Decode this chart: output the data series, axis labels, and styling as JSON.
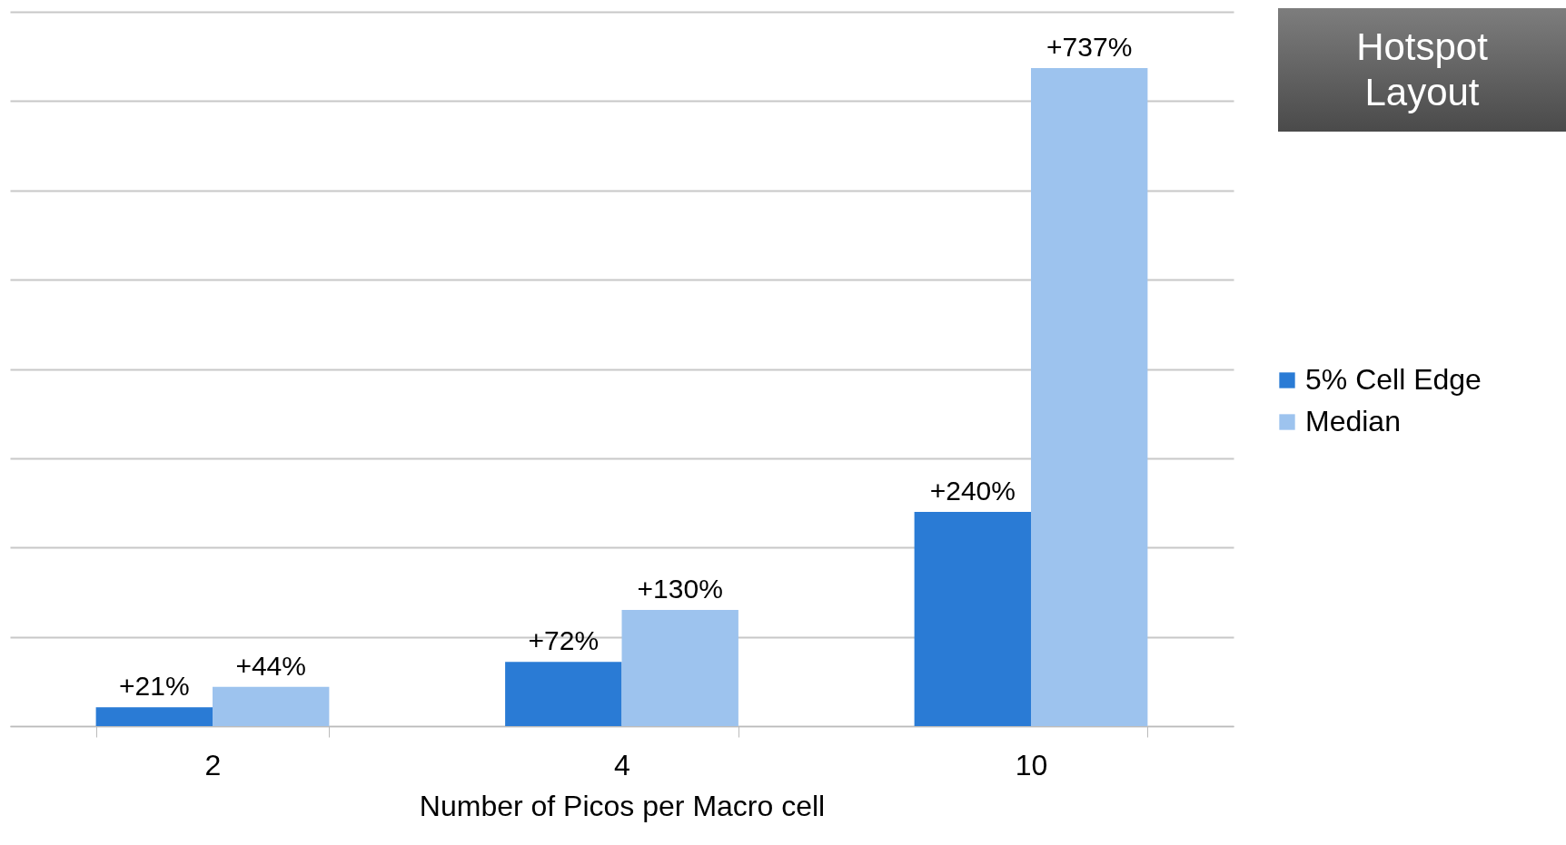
{
  "chart_data": {
    "type": "bar",
    "xlabel": "Number of Picos per Macro cell",
    "categories": [
      "2",
      "4",
      "10"
    ],
    "series": [
      {
        "name": "5% Cell Edge",
        "color": "#2a7bd5",
        "values": [
          21,
          72,
          240
        ],
        "value_labels": [
          "+21%",
          "+72%",
          "+240%"
        ]
      },
      {
        "name": "Median",
        "color": "#9dc3ee",
        "values": [
          44,
          130,
          737
        ],
        "value_labels": [
          "+44%",
          "+130%",
          "+737%"
        ]
      }
    ],
    "ylim": [
      0,
      800
    ],
    "yticks": [
      {
        "value": 0,
        "label": null
      },
      {
        "value": 100,
        "label": null
      },
      {
        "value": 200,
        "label": null
      },
      {
        "value": 300,
        "label": null
      },
      {
        "value": 400,
        "label": null
      },
      {
        "value": 500,
        "label": null
      },
      {
        "value": 600,
        "label": null
      },
      {
        "value": 700,
        "label": null
      },
      {
        "value": 800,
        "label": null
      }
    ],
    "tick_labels": "x",
    "grid": "y",
    "legend": "right",
    "annotations": [
      "Hotspot Layout"
    ]
  }
}
